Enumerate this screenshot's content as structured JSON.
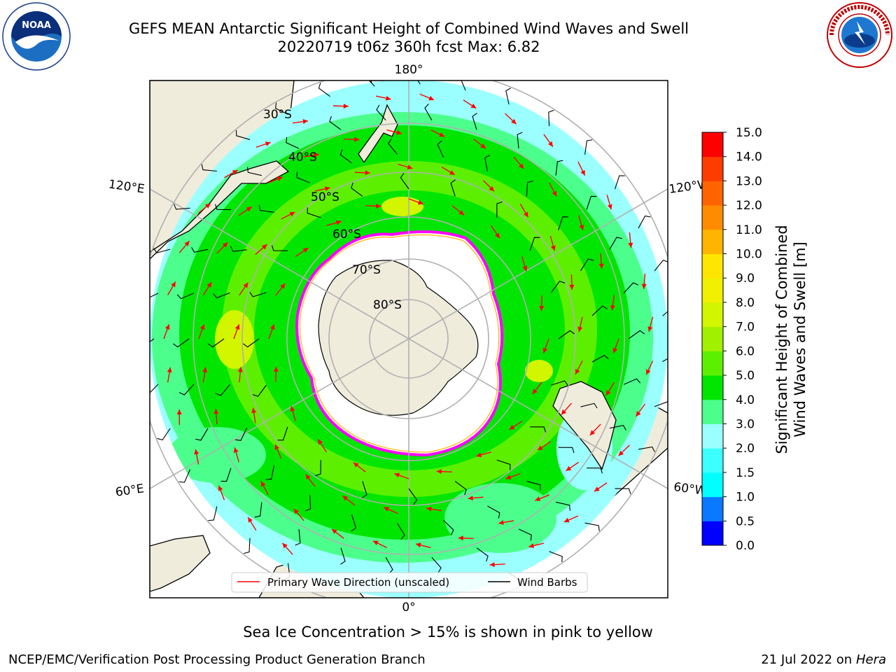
{
  "header": {
    "title_line1": "GEFS MEAN Antarctic Significant Height of Combined Wind Waves and Swell",
    "title_line2": "20220719 t06z 360h fcst   Max: 6.82"
  },
  "logos": {
    "left": {
      "name": "noaa-logo",
      "text": "NOAA",
      "ring_text": "NATIONAL OCEANIC AND ATMOSPHERIC ADMINISTRATION · U.S. DEPARTMENT OF COMMERCE"
    },
    "right": {
      "name": "nws-logo",
      "ring_text": "NATIONAL WEATHER SERVICE"
    }
  },
  "map": {
    "projection": "south-polar-stereographic",
    "lon_labels": {
      "top": "180°",
      "bottom": "0°",
      "upper_left": "120°E",
      "upper_right": "120°W",
      "lower_left": "60°E",
      "lower_right": "60°W"
    },
    "lat_labels": [
      "30°S",
      "40°S",
      "50°S",
      "60°S",
      "70°S",
      "80°S"
    ],
    "legend": [
      {
        "label": "Primary Wave Direction (unscaled)",
        "color": "#ff0000"
      },
      {
        "label": "Wind Barbs",
        "color": "#000000"
      }
    ],
    "colors": {
      "land": "#efecdc",
      "ocean_low": "#9cffff",
      "ice_edge": "#ff00ff",
      "arrow": "#ff0000"
    }
  },
  "colorbar": {
    "label_line1": "Significant Height of Combined",
    "label_line2": "Wind Waves and Swell [m]",
    "ticks": [
      "0.0",
      "0.5",
      "1.0",
      "1.5",
      "2.0",
      "3.0",
      "4.0",
      "5.0",
      "6.0",
      "7.0",
      "8.0",
      "9.0",
      "10.0",
      "11.0",
      "12.0",
      "13.0",
      "14.0",
      "15.0"
    ],
    "colors": [
      "#0000ff",
      "#0a78ff",
      "#00ffff",
      "#3cffff",
      "#9cffff",
      "#4cff8c",
      "#00e600",
      "#5cf000",
      "#a0f000",
      "#d2f500",
      "#f0f000",
      "#ffe600",
      "#ffb400",
      "#ff8c00",
      "#ff6400",
      "#ff3c00",
      "#ff0000"
    ]
  },
  "caption": "Sea Ice Concentration > 15% is shown in pink to yellow",
  "credits": {
    "left": "NCEP/EMC/Verification Post Processing Product Generation Branch",
    "right_prefix": "21 Jul 2022 on ",
    "right_system": "Hera"
  }
}
